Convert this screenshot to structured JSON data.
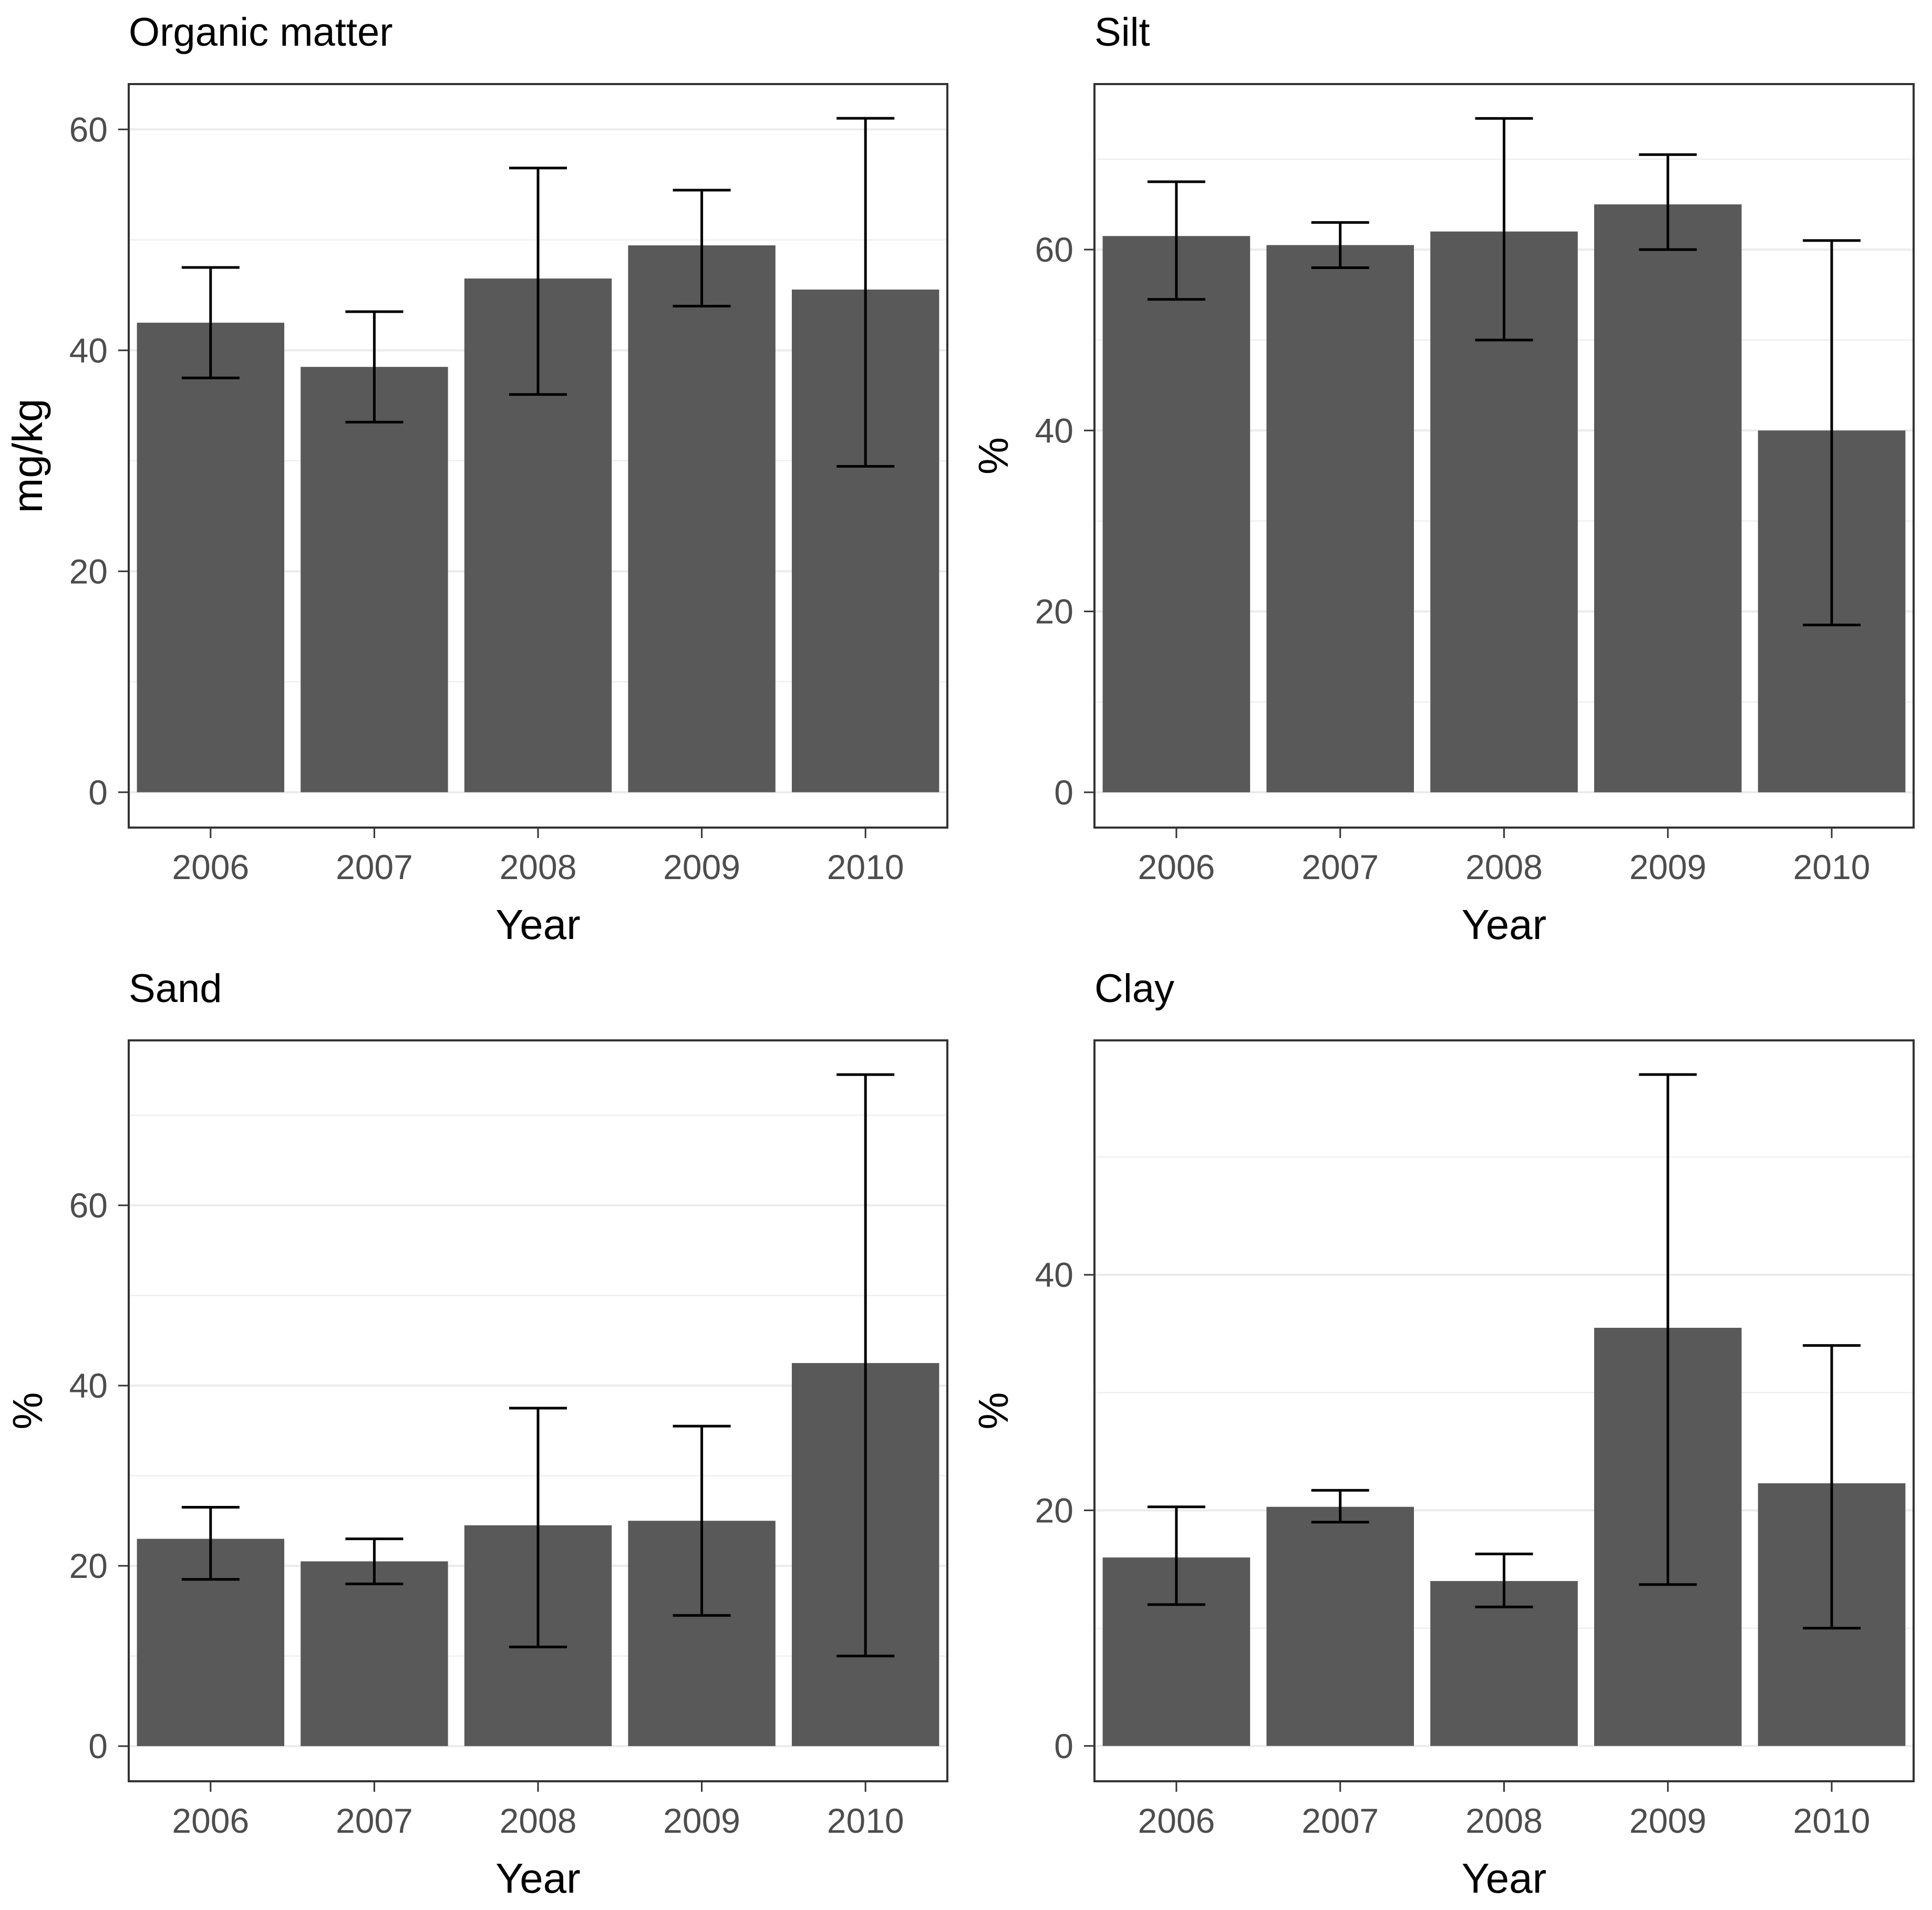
{
  "page": {
    "background": "#FFFFFF"
  },
  "style": {
    "bar_color": "#595959",
    "error_color": "#000000",
    "grid_color": "#EBEBEB",
    "border_color": "#333333",
    "axis_text_color": "#4D4D4D",
    "title_color": "#000000"
  },
  "chart_data": [
    {
      "type": "bar",
      "title": "Organic matter",
      "xlabel": "Year",
      "ylabel": "mg/kg",
      "categories": [
        "2006",
        "2007",
        "2008",
        "2009",
        "2010"
      ],
      "values": [
        42.5,
        38.5,
        46.5,
        49.5,
        45.5
      ],
      "error_low": [
        37.5,
        33.5,
        36.0,
        44.0,
        29.5
      ],
      "error_high": [
        47.5,
        43.5,
        56.5,
        54.5,
        61.0
      ],
      "yticks": [
        0,
        20,
        40,
        60
      ],
      "minor_yticks": [
        10,
        30,
        50
      ],
      "ylim": [
        -3.2,
        64.1
      ],
      "grid": true,
      "legend": "none",
      "bar_width_ratio": 0.9
    },
    {
      "type": "bar",
      "title": "Silt",
      "xlabel": "Year",
      "ylabel": "%",
      "categories": [
        "2006",
        "2007",
        "2008",
        "2009",
        "2010"
      ],
      "values": [
        61.5,
        60.5,
        62.0,
        65.0,
        40.0
      ],
      "error_low": [
        54.5,
        58.0,
        50.0,
        60.0,
        18.5
      ],
      "error_high": [
        67.5,
        63.0,
        74.5,
        70.5,
        61.0
      ],
      "yticks": [
        0,
        20,
        40,
        60
      ],
      "minor_yticks": [
        10,
        30,
        50,
        70
      ],
      "ylim": [
        -3.9,
        78.3
      ],
      "grid": true,
      "legend": "none",
      "bar_width_ratio": 0.9
    },
    {
      "type": "bar",
      "title": "Sand",
      "xlabel": "Year",
      "ylabel": "%",
      "categories": [
        "2006",
        "2007",
        "2008",
        "2009",
        "2010"
      ],
      "values": [
        23.0,
        20.5,
        24.5,
        25.0,
        42.5
      ],
      "error_low": [
        18.5,
        18.0,
        11.0,
        14.5,
        10.0
      ],
      "error_high": [
        26.5,
        23.0,
        37.5,
        35.5,
        74.5
      ],
      "yticks": [
        0,
        20,
        40,
        60
      ],
      "minor_yticks": [
        10,
        30,
        50,
        70
      ],
      "ylim": [
        -3.9,
        78.3
      ],
      "grid": true,
      "legend": "none",
      "bar_width_ratio": 0.9
    },
    {
      "type": "bar",
      "title": "Clay",
      "xlabel": "Year",
      "ylabel": "%",
      "categories": [
        "2006",
        "2007",
        "2008",
        "2009",
        "2010"
      ],
      "values": [
        16.0,
        20.3,
        14.0,
        35.5,
        22.3
      ],
      "error_low": [
        12.0,
        19.0,
        11.8,
        13.7,
        10.0
      ],
      "error_high": [
        20.3,
        21.7,
        16.3,
        57.0,
        34.0
      ],
      "yticks": [
        0,
        20,
        40
      ],
      "minor_yticks": [
        10,
        30,
        50
      ],
      "ylim": [
        -3.0,
        59.9
      ],
      "grid": true,
      "legend": "none",
      "bar_width_ratio": 0.9
    }
  ]
}
